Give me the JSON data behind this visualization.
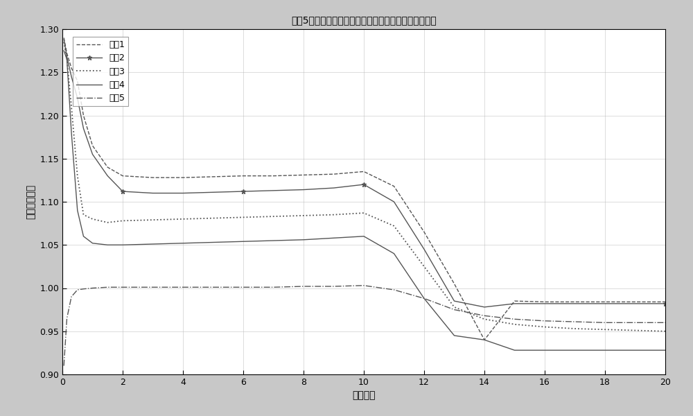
{
  "title": "选厖5个不同像元点在不同积分时间下增益定标系数曲线",
  "xlabel": "积分时间",
  "ylabel": "增益定标系数",
  "xlim": [
    0,
    20
  ],
  "ylim": [
    0.9,
    1.3
  ],
  "xticks": [
    0,
    2,
    4,
    6,
    8,
    10,
    12,
    14,
    16,
    18,
    20
  ],
  "yticks": [
    0.9,
    0.95,
    1.0,
    1.05,
    1.1,
    1.15,
    1.2,
    1.25,
    1.3
  ],
  "legend_labels": [
    "像刔1",
    "像刔2",
    "像刔3",
    "像刔4",
    "像刔5"
  ],
  "series": {
    "pixel1": {
      "x": [
        0.05,
        0.15,
        0.3,
        0.5,
        0.7,
        1.0,
        1.5,
        2,
        3,
        4,
        5,
        6,
        7,
        8,
        9,
        10,
        11,
        12,
        13,
        14,
        15,
        16,
        17,
        18,
        19,
        20
      ],
      "y": [
        1.29,
        1.272,
        1.255,
        1.24,
        1.2,
        1.165,
        1.14,
        1.13,
        1.128,
        1.128,
        1.129,
        1.13,
        1.13,
        1.131,
        1.132,
        1.135,
        1.118,
        1.065,
        1.005,
        0.94,
        0.985,
        0.984,
        0.984,
        0.984,
        0.984,
        0.984
      ],
      "style": "--",
      "color": "#555555",
      "marker": null,
      "linewidth": 1.0
    },
    "pixel2": {
      "x": [
        0.05,
        0.15,
        0.3,
        0.5,
        0.7,
        1.0,
        1.5,
        2,
        3,
        4,
        5,
        6,
        7,
        8,
        9,
        10,
        11,
        12,
        13,
        14,
        15,
        16,
        17,
        18,
        19,
        20
      ],
      "y": [
        1.288,
        1.268,
        1.245,
        1.22,
        1.185,
        1.155,
        1.13,
        1.112,
        1.11,
        1.11,
        1.111,
        1.112,
        1.113,
        1.114,
        1.116,
        1.12,
        1.1,
        1.045,
        0.985,
        0.978,
        0.982,
        0.982,
        0.982,
        0.982,
        0.982,
        0.982
      ],
      "style": "-",
      "color": "#555555",
      "marker": "*",
      "linewidth": 1.0,
      "markevery": [
        7,
        11,
        15,
        25
      ]
    },
    "pixel3": {
      "x": [
        0.05,
        0.15,
        0.3,
        0.5,
        0.7,
        1.0,
        1.5,
        2,
        3,
        4,
        5,
        6,
        7,
        8,
        9,
        10,
        11,
        12,
        13,
        14,
        15,
        16,
        17,
        18,
        19,
        20
      ],
      "y": [
        1.285,
        1.265,
        1.21,
        1.13,
        1.085,
        1.08,
        1.076,
        1.078,
        1.079,
        1.08,
        1.081,
        1.082,
        1.083,
        1.084,
        1.085,
        1.087,
        1.072,
        1.025,
        0.978,
        0.964,
        0.958,
        0.955,
        0.953,
        0.952,
        0.951,
        0.95
      ],
      "style": ":",
      "color": "#555555",
      "marker": null,
      "linewidth": 1.3
    },
    "pixel4": {
      "x": [
        0.05,
        0.15,
        0.3,
        0.5,
        0.7,
        1.0,
        1.5,
        2,
        3,
        4,
        5,
        6,
        7,
        8,
        9,
        10,
        11,
        12,
        13,
        14,
        15,
        16,
        17,
        18,
        19,
        20
      ],
      "y": [
        1.275,
        1.265,
        1.18,
        1.09,
        1.06,
        1.052,
        1.05,
        1.05,
        1.051,
        1.052,
        1.053,
        1.054,
        1.055,
        1.056,
        1.058,
        1.06,
        1.04,
        0.988,
        0.945,
        0.94,
        0.928,
        0.928,
        0.928,
        0.928,
        0.928,
        0.928
      ],
      "style": "-",
      "color": "#555555",
      "marker": null,
      "linewidth": 1.0
    },
    "pixel5": {
      "x": [
        0.05,
        0.15,
        0.3,
        0.5,
        0.7,
        1.0,
        1.5,
        2,
        3,
        4,
        5,
        6,
        7,
        8,
        9,
        10,
        11,
        12,
        13,
        14,
        15,
        16,
        17,
        18,
        19,
        20
      ],
      "y": [
        0.91,
        0.965,
        0.99,
        0.998,
        0.999,
        1.0,
        1.001,
        1.001,
        1.001,
        1.001,
        1.001,
        1.001,
        1.001,
        1.002,
        1.002,
        1.003,
        0.998,
        0.988,
        0.975,
        0.968,
        0.964,
        0.962,
        0.961,
        0.96,
        0.96,
        0.96
      ],
      "style": "-.",
      "color": "#555555",
      "marker": null,
      "linewidth": 1.0
    }
  },
  "background_color": "#c8c8c8",
  "plot_bg_color": "#ffffff",
  "title_fontsize": 10,
  "label_fontsize": 10,
  "tick_fontsize": 9
}
